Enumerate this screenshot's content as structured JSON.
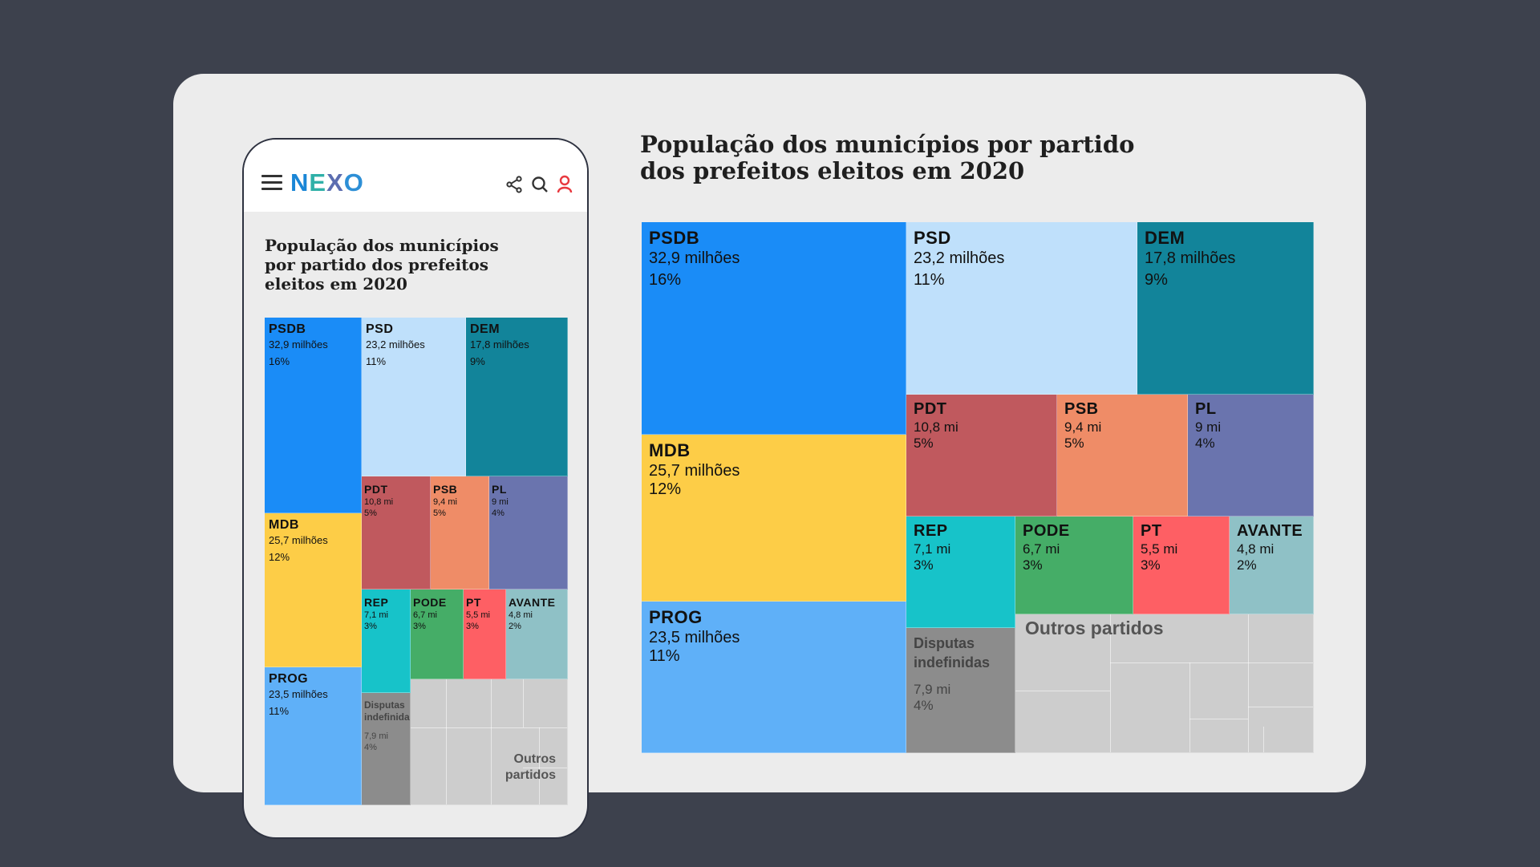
{
  "app": {
    "logo": "NEXO",
    "title": "População dos municípios por partido dos prefeitos eleitos em 2020",
    "icons": [
      "menu-icon",
      "share-icon",
      "search-icon",
      "user-icon"
    ]
  },
  "chart_data": {
    "type": "treemap",
    "title": "População dos municípios por partido dos prefeitos eleitos em 2020",
    "tiles": [
      {
        "name": "PSDB",
        "value_label": "32,9 milhões",
        "mobile_value_label": "32,9 milhões",
        "value": 32.9,
        "percent": "16%",
        "color": "#1a8cf7",
        "text": "#111111"
      },
      {
        "name": "PSD",
        "value_label": "23,2 milhões",
        "mobile_value_label": "23,2 milhões",
        "value": 23.2,
        "percent": "11%",
        "color": "#bfe0fb",
        "text": "#111111"
      },
      {
        "name": "DEM",
        "value_label": "17,8 milhões",
        "mobile_value_label": "17,8 milhões",
        "value": 17.8,
        "percent": "9%",
        "color": "#12849a",
        "text": "#111111"
      },
      {
        "name": "MDB",
        "value_label": "25,7 milhões",
        "mobile_value_label": "25,7 milhões",
        "value": 25.7,
        "percent": "12%",
        "color": "#fdcd47",
        "text": "#111111"
      },
      {
        "name": "PDT",
        "value_label": "10,8 mi",
        "mobile_value_label": "10,8 mi",
        "value": 10.8,
        "percent": "5%",
        "color": "#c0595e",
        "text": "#111111"
      },
      {
        "name": "PSB",
        "value_label": "9,4 mi",
        "mobile_value_label": "9,4 mi",
        "value": 9.4,
        "percent": "5%",
        "color": "#ef8c67",
        "text": "#111111"
      },
      {
        "name": "PL",
        "value_label": "9 mi",
        "mobile_value_label": "9 mi",
        "value": 9.0,
        "percent": "4%",
        "color": "#6a74ae",
        "text": "#111111"
      },
      {
        "name": "PROG",
        "value_label": "23,5 milhões",
        "mobile_value_label": "23,5 milhões",
        "value": 23.5,
        "percent": "11%",
        "color": "#5fb0f8",
        "text": "#111111"
      },
      {
        "name": "REP",
        "value_label": "7,1 mi",
        "mobile_value_label": "7,1 mi",
        "value": 7.1,
        "percent": "3%",
        "color": "#17c3c9",
        "text": "#111111"
      },
      {
        "name": "PODE",
        "value_label": "6,7 mi",
        "mobile_value_label": "6,7 mi",
        "value": 6.7,
        "percent": "3%",
        "color": "#45ad67",
        "text": "#111111"
      },
      {
        "name": "PT",
        "value_label": "5,5 mi",
        "mobile_value_label": "5,5 mi",
        "value": 5.5,
        "percent": "3%",
        "color": "#fe5f64",
        "text": "#111111"
      },
      {
        "name": "AVANTE",
        "value_label": "4,8 mi",
        "mobile_value_label": "4,8 mi",
        "value": 4.8,
        "percent": "2%",
        "color": "#8fc1c6",
        "text": "#111111"
      },
      {
        "name": "Disputas indefinidas",
        "value_label": "7,9 mi",
        "mobile_value_label": "7,9 mi",
        "value": 7.9,
        "percent": "4%",
        "color": "#8c8c8c",
        "text": "#444444"
      },
      {
        "name": "Outros partidos",
        "value_label": "",
        "mobile_value_label": "",
        "value": null,
        "percent": "",
        "color": "#cdcdcd",
        "text": "#555555"
      }
    ],
    "mobile_others_label": "Outros partidos"
  }
}
